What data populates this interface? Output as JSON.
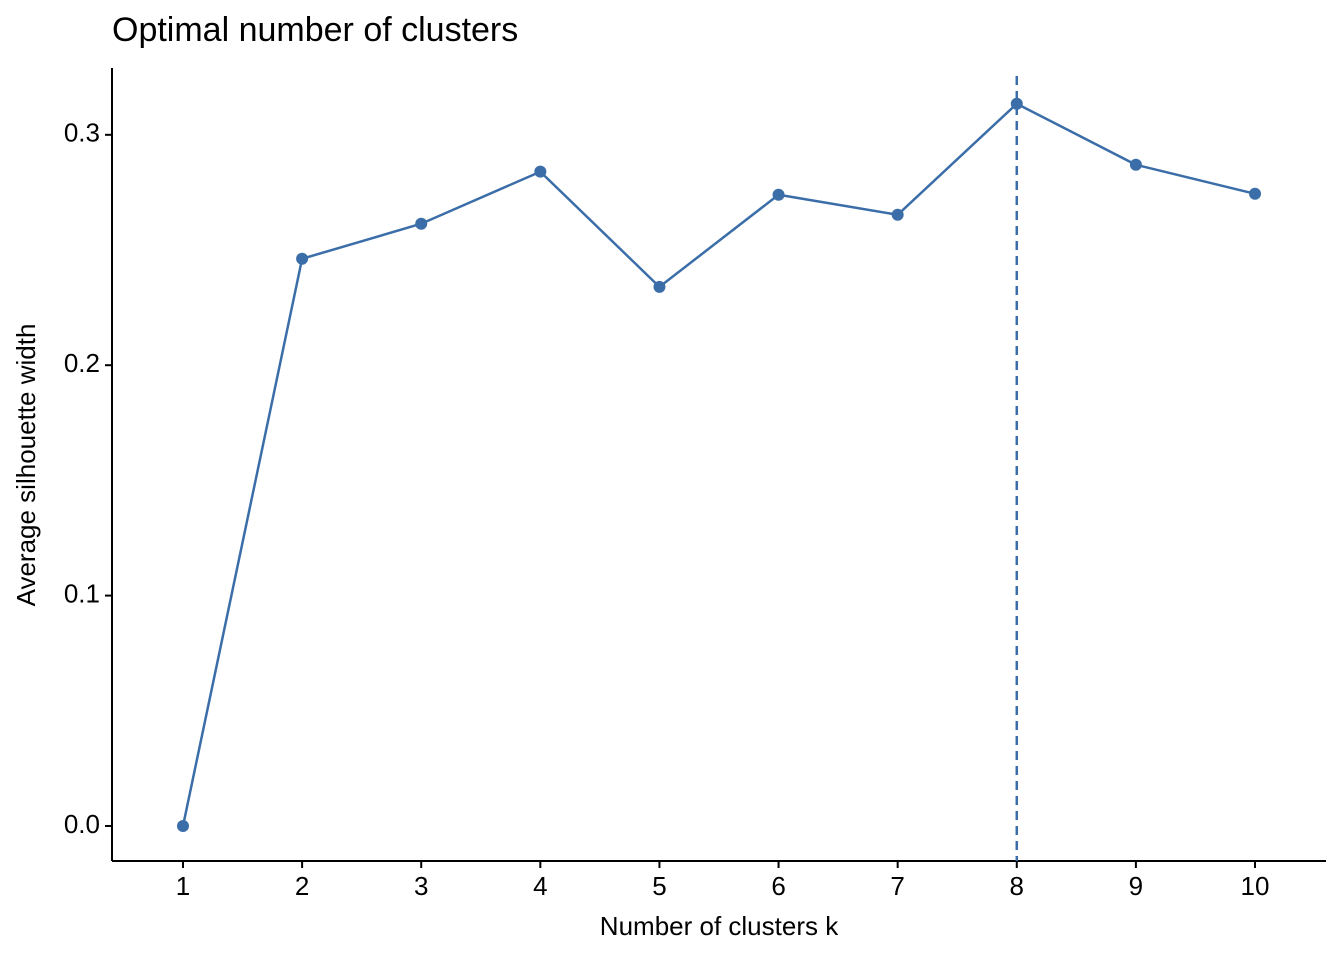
{
  "chart_data": {
    "type": "line",
    "title": "Optimal number of clusters",
    "x_label": "Number of clusters k",
    "y_label": "Average silhouette width",
    "x": [
      1,
      2,
      3,
      4,
      5,
      6,
      7,
      8,
      9,
      10
    ],
    "series": [
      {
        "color": "#3b6ea8",
        "values": [
          0.0,
          0.2462,
          0.2614,
          0.284,
          0.234,
          0.274,
          0.2653,
          0.3135,
          0.287,
          0.2744
        ]
      }
    ],
    "xlim": [
      0.404,
      10.596
    ],
    "ylim": [
      -0.0152,
      0.329
    ],
    "xticks": [
      1,
      2,
      3,
      4,
      5,
      6,
      7,
      8,
      9,
      10
    ],
    "yticks": [
      {
        "value": 0,
        "label": "0.0"
      },
      0.1,
      0.2,
      0.3
    ],
    "vline": 8,
    "grid": false
  }
}
